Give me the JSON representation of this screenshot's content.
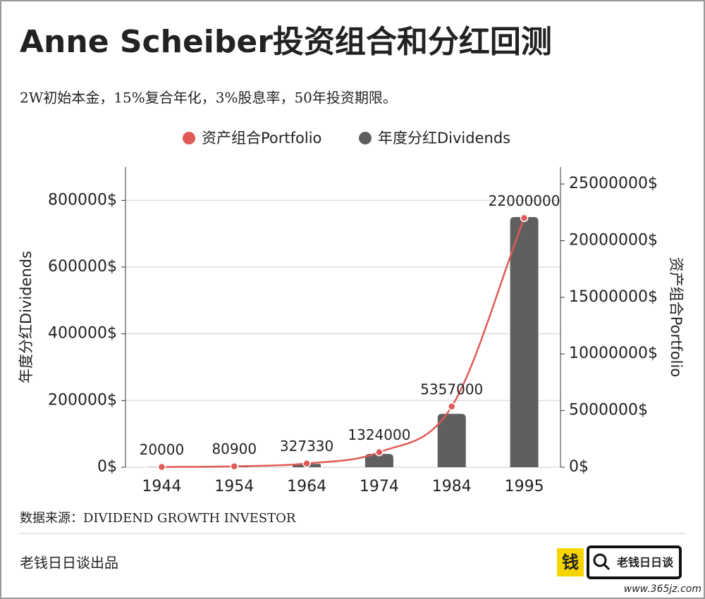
{
  "chart_data": {
    "type": "combo",
    "title": "Anne Scheiber投资组合和分红回测",
    "subtitle": "2W初始本金，15%复合年化，3%股息率，50年投资期限。",
    "categories": [
      "1944",
      "1954",
      "1964",
      "1974",
      "1984",
      "1995"
    ],
    "series": [
      {
        "name": "资产组合Portfolio",
        "type": "line",
        "axis": "y2",
        "color": "#e05a55",
        "values": [
          20000,
          80900,
          327330,
          1324000,
          5357000,
          22000000
        ]
      },
      {
        "name": "年度分红Dividends",
        "type": "bar",
        "color": "#5f5f5f",
        "values": [
          600,
          2400,
          10000,
          40000,
          160000,
          750000
        ]
      }
    ],
    "y_label": "年度分红Dividends",
    "y2_label": "资产组合Portfolio",
    "ylim": [
      0,
      900000
    ],
    "yticks": [
      {
        "value": 0,
        "label": "0$"
      },
      {
        "value": 200000,
        "label": "200000$"
      },
      {
        "value": 400000,
        "label": "400000$"
      },
      {
        "value": 600000,
        "label": "600000$"
      },
      {
        "value": 800000,
        "label": "800000$"
      }
    ],
    "y2lim": [
      0,
      26500000
    ],
    "y2ticks": [
      {
        "value": 0,
        "label": "0$"
      },
      {
        "value": 5000000,
        "label": "5000000$"
      },
      {
        "value": 10000000,
        "label": "10000000$"
      },
      {
        "value": 15000000,
        "label": "15000000$"
      },
      {
        "value": 20000000,
        "label": "20000000$"
      },
      {
        "value": 25000000,
        "label": "25000000$"
      }
    ],
    "grid": true,
    "legend": "top"
  },
  "source": "数据来源：DIVIDEND GROWTH INVESTOR",
  "footer": "老钱日日谈出品",
  "logo": {
    "icon": "钱",
    "text": "老钱日日谈"
  },
  "watermark": "www.365jz.com"
}
